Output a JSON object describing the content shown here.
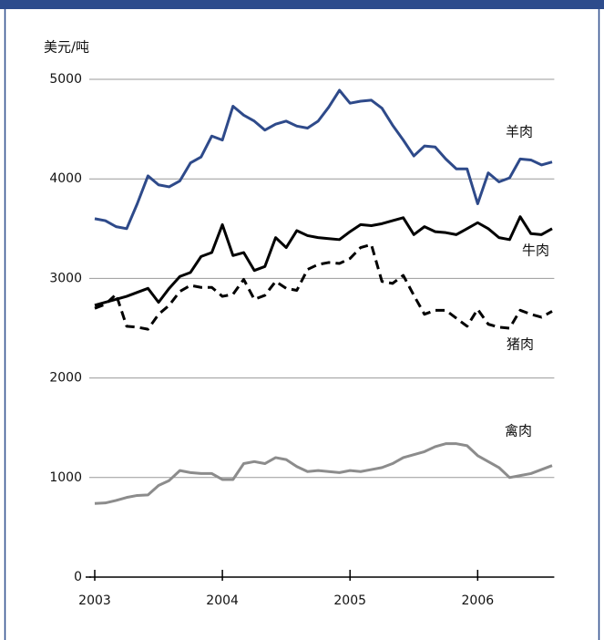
{
  "chart_data": {
    "type": "line",
    "y_label": "美元/吨",
    "x": [
      2003,
      2003.083,
      2003.167,
      2003.25,
      2003.333,
      2003.417,
      2003.5,
      2003.583,
      2003.667,
      2003.75,
      2003.833,
      2003.917,
      2004,
      2004.083,
      2004.167,
      2004.25,
      2004.333,
      2004.417,
      2004.5,
      2004.583,
      2004.667,
      2004.75,
      2004.833,
      2004.917,
      2005,
      2005.083,
      2005.167,
      2005.25,
      2005.333,
      2005.417,
      2005.5,
      2005.583,
      2005.667,
      2005.75,
      2005.833,
      2005.917,
      2006,
      2006.083,
      2006.167,
      2006.25,
      2006.333,
      2006.417,
      2006.5,
      2006.583
    ],
    "series": [
      {
        "name": "羊肉",
        "color": "#2e4a8a",
        "style": "solid",
        "values": [
          3600,
          3580,
          3520,
          3500,
          3750,
          4030,
          3940,
          3920,
          3980,
          4160,
          4220,
          4430,
          4390,
          4730,
          4640,
          4580,
          4490,
          4550,
          4580,
          4530,
          4510,
          4580,
          4720,
          4890,
          4760,
          4780,
          4790,
          4710,
          4540,
          4390,
          4230,
          4330,
          4320,
          4200,
          4100,
          4100,
          3750,
          4060,
          3970,
          4010,
          4200,
          4190,
          4140,
          4170
        ]
      },
      {
        "name": "牛肉",
        "color": "#000000",
        "style": "solid",
        "values": [
          2730,
          2760,
          2790,
          2820,
          2860,
          2900,
          2760,
          2900,
          3020,
          3060,
          3220,
          3260,
          3540,
          3230,
          3260,
          3080,
          3120,
          3410,
          3310,
          3480,
          3430,
          3410,
          3400,
          3390,
          3470,
          3540,
          3530,
          3550,
          3580,
          3610,
          3440,
          3520,
          3470,
          3460,
          3440,
          3500,
          3560,
          3500,
          3410,
          3390,
          3620,
          3450,
          3440,
          3500
        ]
      },
      {
        "name": "猪肉",
        "color": "#000000",
        "style": "dashed",
        "values": [
          2700,
          2740,
          2840,
          2520,
          2510,
          2490,
          2640,
          2730,
          2870,
          2930,
          2910,
          2910,
          2820,
          2840,
          2990,
          2790,
          2830,
          2970,
          2900,
          2880,
          3090,
          3140,
          3160,
          3150,
          3200,
          3310,
          3340,
          2970,
          2950,
          3030,
          2830,
          2640,
          2680,
          2680,
          2600,
          2520,
          2690,
          2540,
          2510,
          2500,
          2680,
          2640,
          2610,
          2670
        ]
      },
      {
        "name": "禽肉",
        "color": "#8c8c8c",
        "style": "solid",
        "values": [
          740,
          745,
          770,
          800,
          820,
          825,
          920,
          970,
          1070,
          1050,
          1040,
          1040,
          980,
          980,
          1140,
          1160,
          1140,
          1200,
          1180,
          1110,
          1060,
          1070,
          1060,
          1050,
          1070,
          1060,
          1080,
          1100,
          1140,
          1200,
          1230,
          1260,
          1310,
          1340,
          1340,
          1320,
          1220,
          1160,
          1100,
          1000,
          1020,
          1040,
          1080,
          1120
        ]
      }
    ],
    "xlim": [
      2003,
      2006.6
    ],
    "xticks": [
      2003,
      2004,
      2005,
      2006
    ],
    "ylim": [
      0,
      5000
    ],
    "yticks": [
      0,
      1000,
      2000,
      3000,
      4000,
      5000
    ],
    "grid": true
  }
}
